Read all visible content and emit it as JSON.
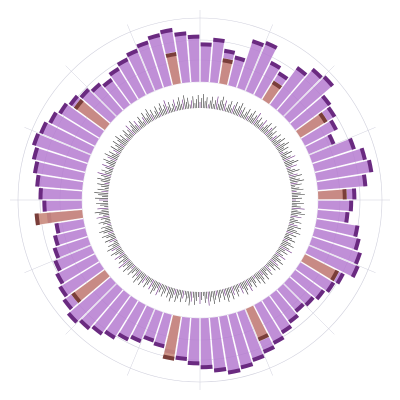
{
  "chart_data": {
    "type": "bar",
    "layout": "radial",
    "title": "",
    "xlabel": "",
    "ylabel": "",
    "grid": true,
    "legend": "none",
    "ylim": [
      0,
      100
    ],
    "colors": {
      "purple": "#b57bd0",
      "purple_dark": "#6a2a80",
      "salmon": "#c98a7c",
      "salmon_dark": "#7a3e3a",
      "grid": "#cfcfdc"
    },
    "series": [
      {
        "color_key": "purple",
        "values": [
          62,
          70,
          55,
          48,
          80,
          85,
          60,
          52,
          75,
          88,
          92,
          70,
          66,
          58,
          45,
          72,
          84,
          90,
          78,
          60,
          55,
          50,
          68,
          74,
          82,
          86,
          70,
          64,
          58,
          52,
          48,
          55,
          62,
          70,
          76,
          82,
          88,
          92,
          86,
          80,
          74,
          68,
          60,
          54,
          50,
          58,
          64,
          72,
          78,
          84,
          90,
          82,
          76,
          70,
          64,
          58,
          52,
          46,
          56,
          62,
          68,
          74,
          80,
          86,
          92,
          88,
          82,
          76,
          70,
          64,
          58,
          52,
          60,
          66,
          72,
          78,
          84,
          88,
          80,
          74
        ]
      },
      {
        "color_key": "salmon",
        "values": [
          0,
          0,
          40,
          0,
          0,
          0,
          0,
          35,
          0,
          0,
          0,
          0,
          50,
          0,
          0,
          0,
          0,
          0,
          0,
          45,
          0,
          0,
          0,
          0,
          0,
          0,
          60,
          0,
          0,
          0,
          0,
          0,
          0,
          0,
          55,
          0,
          0,
          0,
          0,
          0,
          0,
          0,
          70,
          0,
          0,
          0,
          0,
          0,
          0,
          0,
          0,
          65,
          0,
          0,
          0,
          0,
          0,
          0,
          75,
          0,
          0,
          0,
          0,
          0,
          0,
          0,
          0,
          0,
          60,
          0,
          0,
          0,
          0,
          0,
          0,
          0,
          0,
          50,
          0,
          0
        ]
      }
    ]
  }
}
